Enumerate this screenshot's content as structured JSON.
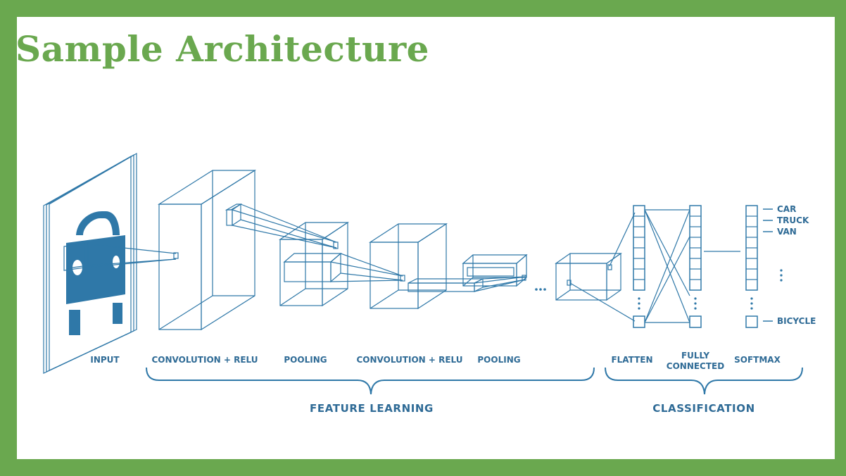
{
  "slide": {
    "title": "Sample Architecture",
    "accent_color": "#6aa84f",
    "diagram_color": "#2f78a8"
  },
  "diagram": {
    "stage_labels": {
      "input": "INPUT",
      "conv1": "CONVOLUTION + RELU",
      "pool1": "POOLING",
      "conv2": "CONVOLUTION + RELU",
      "pool2": "POOLING",
      "flatten": "FLATTEN",
      "fc_line1": "FULLY",
      "fc_line2": "CONNECTED",
      "softmax": "SOFTMAX"
    },
    "groups": {
      "feature_learning": "FEATURE LEARNING",
      "classification": "CLASSIFICATION"
    },
    "outputs": [
      "CAR",
      "TRUCK",
      "VAN",
      "BICYCLE"
    ],
    "input_icon": "car-icon"
  }
}
